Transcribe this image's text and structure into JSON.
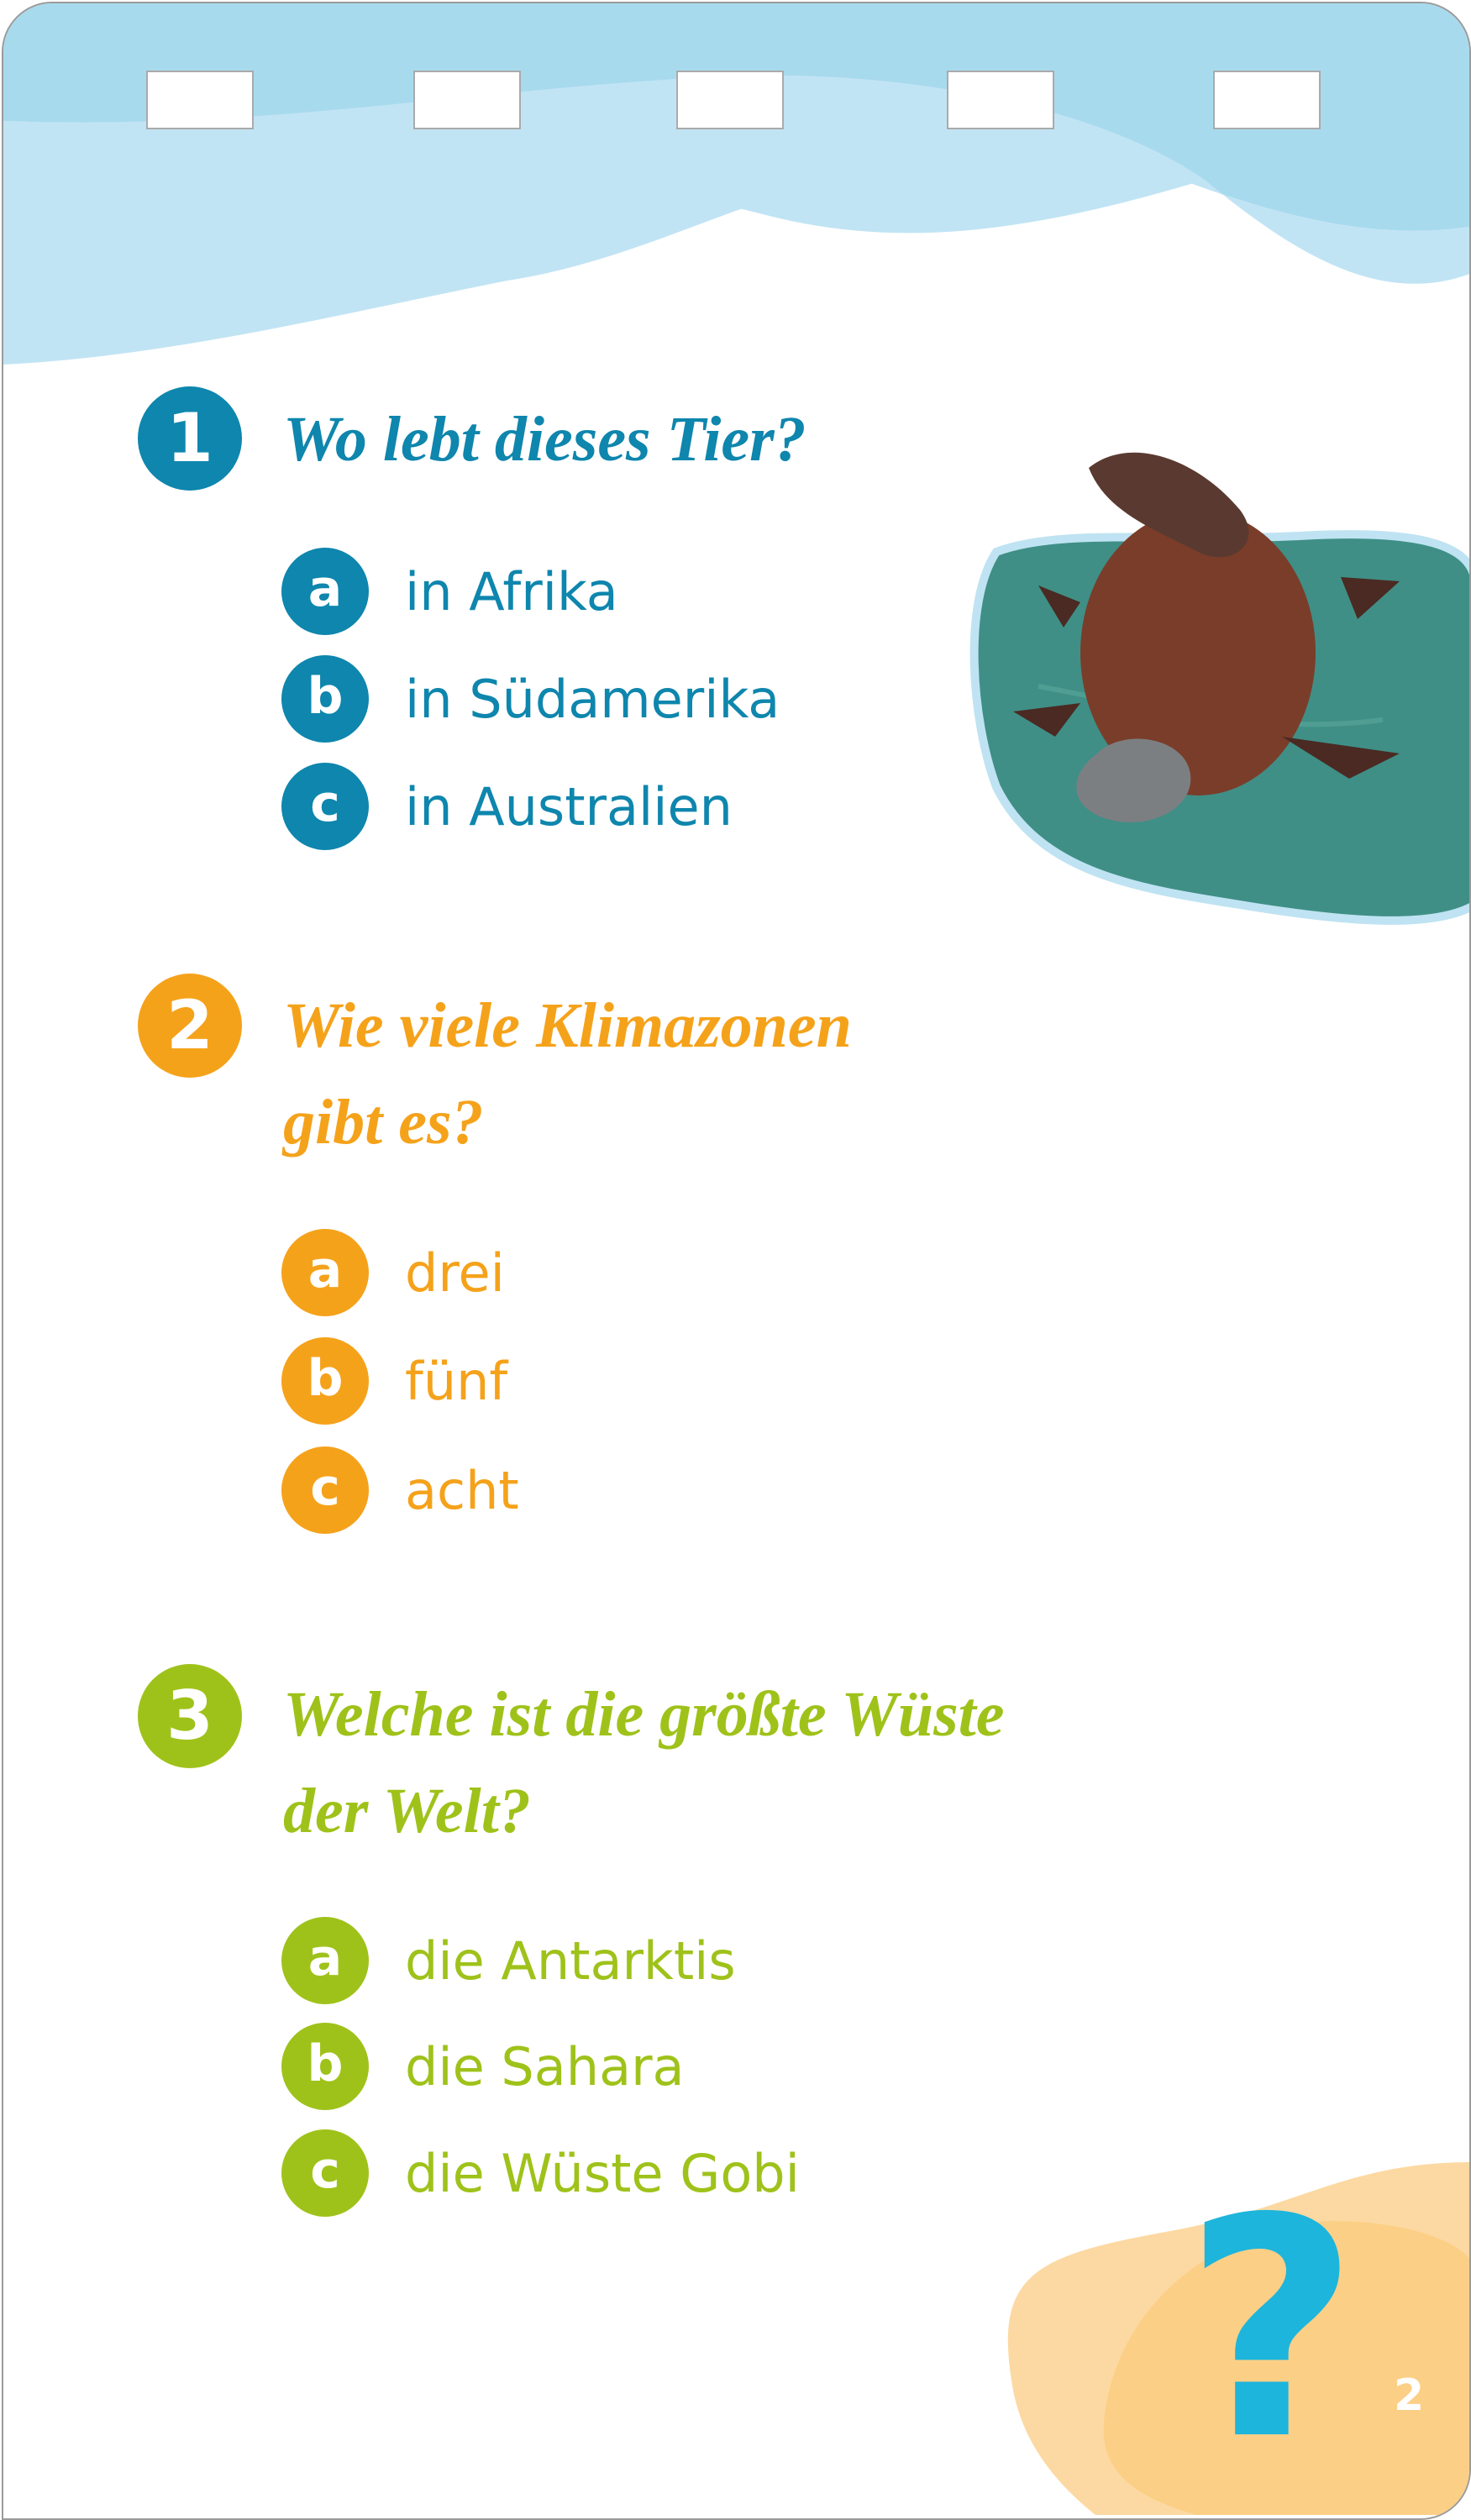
{
  "colors": {
    "q1": "#0e86ad",
    "q2": "#f5a21b",
    "q3": "#9fc21a",
    "question_mark": "#1db5dc",
    "wave_dark": "#a8daee",
    "wave_light": "#c1e4f4",
    "blob_light": "#fcd9a2",
    "blob_dark": "#fccf86"
  },
  "questions": [
    {
      "number": "1",
      "lines": [
        "Wo lebt dieses Tier?"
      ],
      "answers": [
        {
          "letter": "a",
          "text": "in Afrika"
        },
        {
          "letter": "b",
          "text": "in Südamerika"
        },
        {
          "letter": "c",
          "text": "in Australien"
        }
      ],
      "image": "platypus-swimming-photo"
    },
    {
      "number": "2",
      "lines": [
        "Wie viele Klimazonen",
        "gibt es?"
      ],
      "answers": [
        {
          "letter": "a",
          "text": "drei"
        },
        {
          "letter": "b",
          "text": "fünf"
        },
        {
          "letter": "c",
          "text": "acht"
        }
      ]
    },
    {
      "number": "3",
      "lines": [
        "Welche ist die größte Wüste",
        "der Welt?"
      ],
      "answers": [
        {
          "letter": "a",
          "text": "die Antarktis"
        },
        {
          "letter": "b",
          "text": "die Sahara"
        },
        {
          "letter": "c",
          "text": "die Wüste Gobi"
        }
      ]
    }
  ],
  "footer": {
    "symbol": "?",
    "page_number": "2"
  }
}
